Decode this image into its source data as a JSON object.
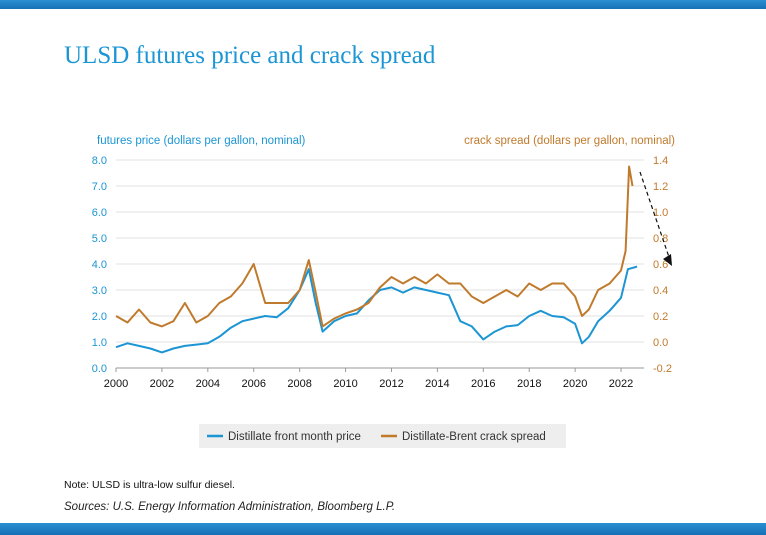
{
  "title": "ULSD futures price and crack spread",
  "note": "Note: ULSD is ultra-low sulfur diesel.",
  "sources": "Sources: U.S. Energy Information Administration, Bloomberg L.P.",
  "colors": {
    "accent": "#1b95d3",
    "price": "#1b95d3",
    "crack": "#c07a2c",
    "bar": "#1670b5"
  },
  "chart_data": {
    "type": "line",
    "left_axis": {
      "label": "futures price (dollars per gallon, nominal)",
      "ylim": [
        0,
        8
      ],
      "ticks": [
        "0.0",
        "1.0",
        "2.0",
        "3.0",
        "4.0",
        "5.0",
        "6.0",
        "7.0",
        "8.0"
      ]
    },
    "right_axis": {
      "label": "crack spread (dollars per gallon, nominal)",
      "ylim": [
        -0.2,
        1.4
      ],
      "ticks": [
        "-0.2",
        "0.0",
        "0.2",
        "0.4",
        "0.6",
        "0.8",
        "1.0",
        "1.2",
        "1.4"
      ]
    },
    "x_axis": {
      "xlim": [
        2000,
        2023
      ],
      "ticks": [
        "2000",
        "2002",
        "2004",
        "2006",
        "2008",
        "2010",
        "2012",
        "2014",
        "2016",
        "2018",
        "2020",
        "2022"
      ]
    },
    "grid": true,
    "legend_position": "bottom",
    "series": [
      {
        "name": "Distillate front month price",
        "axis": "left",
        "x": [
          2000,
          2000.5,
          2001,
          2001.5,
          2002,
          2002.5,
          2003,
          2003.5,
          2004,
          2004.5,
          2005,
          2005.5,
          2006,
          2006.5,
          2007,
          2007.5,
          2008,
          2008.4,
          2008.7,
          2009,
          2009.5,
          2010,
          2010.5,
          2011,
          2011.5,
          2012,
          2012.5,
          2013,
          2013.5,
          2014,
          2014.5,
          2015,
          2015.5,
          2016,
          2016.5,
          2017,
          2017.5,
          2018,
          2018.5,
          2019,
          2019.5,
          2020,
          2020.3,
          2020.6,
          2021,
          2021.5,
          2022,
          2022.3,
          2022.7
        ],
        "values": [
          0.8,
          0.95,
          0.85,
          0.75,
          0.6,
          0.75,
          0.85,
          0.9,
          0.95,
          1.2,
          1.55,
          1.8,
          1.9,
          2.0,
          1.95,
          2.3,
          3.0,
          3.8,
          2.5,
          1.4,
          1.8,
          2.0,
          2.1,
          2.6,
          3.0,
          3.1,
          2.9,
          3.1,
          3.0,
          2.9,
          2.8,
          1.8,
          1.6,
          1.1,
          1.4,
          1.6,
          1.65,
          2.0,
          2.2,
          2.0,
          1.95,
          1.7,
          0.95,
          1.2,
          1.8,
          2.2,
          2.7,
          3.8,
          3.9
        ]
      },
      {
        "name": "Distillate-Brent crack spread",
        "axis": "right",
        "x": [
          2000,
          2000.5,
          2001,
          2001.5,
          2002,
          2002.5,
          2003,
          2003.5,
          2004,
          2004.5,
          2005,
          2005.5,
          2006,
          2006.5,
          2007,
          2007.5,
          2008,
          2008.4,
          2008.7,
          2009,
          2009.5,
          2010,
          2010.5,
          2011,
          2011.5,
          2012,
          2012.5,
          2013,
          2013.5,
          2014,
          2014.5,
          2015,
          2015.5,
          2016,
          2016.5,
          2017,
          2017.5,
          2018,
          2018.5,
          2019,
          2019.5,
          2020,
          2020.3,
          2020.6,
          2021,
          2021.5,
          2022,
          2022.2,
          2022.35,
          2022.5
        ],
        "values": [
          0.2,
          0.15,
          0.25,
          0.15,
          0.12,
          0.16,
          0.3,
          0.15,
          0.2,
          0.3,
          0.35,
          0.45,
          0.6,
          0.3,
          0.3,
          0.3,
          0.4,
          0.63,
          0.38,
          0.12,
          0.18,
          0.22,
          0.25,
          0.3,
          0.42,
          0.5,
          0.45,
          0.5,
          0.45,
          0.52,
          0.45,
          0.45,
          0.35,
          0.3,
          0.35,
          0.4,
          0.35,
          0.45,
          0.4,
          0.45,
          0.45,
          0.35,
          0.2,
          0.25,
          0.4,
          0.45,
          0.55,
          0.7,
          1.35,
          1.2
        ]
      }
    ]
  }
}
